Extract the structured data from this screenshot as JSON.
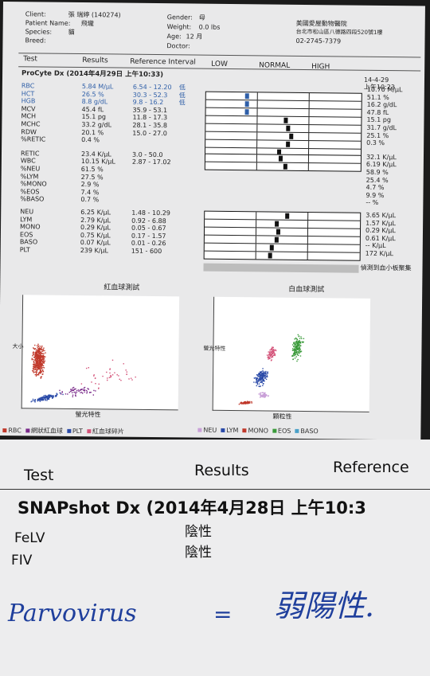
{
  "header": {
    "client_label": "Client:",
    "client_value": "張 瑞婷 (140274)",
    "patient_label": "Patient Name:",
    "patient_value": "飛瓏",
    "species_label": "Species:",
    "species_value": "貓",
    "breed_label": "Breed:",
    "gender_label": "Gender:",
    "gender_value": "母",
    "weight_label": "Weight:",
    "weight_value": "0.0 lbs",
    "age_label": "Age:",
    "age_value": "12 月",
    "doctor_label": "Doctor:",
    "clinic_name": "美國愛屋動物醫院",
    "clinic_address": "台北市松山區八德路四段520號1樓",
    "clinic_phone": "02-2745-7379"
  },
  "columns": {
    "test": "Test",
    "results": "Results",
    "reference": "Reference Interval",
    "low": "LOW",
    "normal": "NORMAL",
    "high": "HIGH"
  },
  "procyte": {
    "title": "ProCyte Dx (2014年4月29日 上午10:33)",
    "prev_date": "14-4-29",
    "prev_time": "上午10:23",
    "rows": [
      {
        "name": "RBC",
        "result": "5.84 M/μL",
        "ref": "6.54 - 12.20",
        "flag": "低",
        "prev": "10.70 M/μL",
        "low": true,
        "pos": 0.25
      },
      {
        "name": "HCT",
        "result": "26.5 %",
        "ref": "30.3 - 52.3",
        "flag": "低",
        "prev": "51.1 %",
        "low": true,
        "pos": 0.25
      },
      {
        "name": "HGB",
        "result": "8.8 g/dL",
        "ref": "9.8 - 16.2",
        "flag": "低",
        "prev": "16.2 g/dL",
        "low": true,
        "pos": 0.25
      },
      {
        "name": "MCV",
        "result": "45.4 fL",
        "ref": "35.9 - 53.1",
        "flag": "",
        "prev": "47.8 fL",
        "low": false,
        "pos": 0.5
      },
      {
        "name": "MCH",
        "result": "15.1 pg",
        "ref": "11.8 - 17.3",
        "flag": "",
        "prev": "15.1 pg",
        "low": false,
        "pos": 0.52
      },
      {
        "name": "MCHC",
        "result": "33.2 g/dL",
        "ref": "28.1 - 35.8",
        "flag": "",
        "prev": "31.7 g/dL",
        "low": false,
        "pos": 0.54
      },
      {
        "name": "RDW",
        "result": "20.1 %",
        "ref": "15.0 - 27.0",
        "flag": "",
        "prev": "25.1 %",
        "low": false,
        "pos": 0.52
      },
      {
        "name": "%RETIC",
        "result": "0.4 %",
        "ref": "",
        "flag": "",
        "prev": "0.3 %",
        "low": false,
        "pos": 0.46
      },
      {
        "name": "RETIC",
        "result": "23.4 K/μL",
        "ref": "3.0 - 50.0",
        "flag": "",
        "prev": "32.1 K/μL",
        "low": false,
        "pos": 0.47
      },
      {
        "name": "WBC",
        "result": "10.15 K/μL",
        "ref": "2.87 - 17.02",
        "flag": "",
        "prev": "6.19 K/μL",
        "low": false,
        "pos": 0.5
      },
      {
        "name": "%NEU",
        "result": "61.5 %",
        "ref": "",
        "flag": "",
        "prev": "58.9 %",
        "low": false,
        "pos": -1
      },
      {
        "name": "%LYM",
        "result": "27.5 %",
        "ref": "",
        "flag": "",
        "prev": "25.4 %",
        "low": false,
        "pos": -1
      },
      {
        "name": "%MONO",
        "result": "2.9 %",
        "ref": "",
        "flag": "",
        "prev": "4.7 %",
        "low": false,
        "pos": -1
      },
      {
        "name": "%EOS",
        "result": "7.4 %",
        "ref": "",
        "flag": "",
        "prev": "9.9 %",
        "low": false,
        "pos": -1
      },
      {
        "name": "%BASO",
        "result": "0.7 %",
        "ref": "",
        "flag": "",
        "prev": "-- %",
        "low": false,
        "pos": -1
      },
      {
        "name": "NEU",
        "result": "6.25 K/μL",
        "ref": "1.48 - 10.29",
        "flag": "",
        "prev": "3.65 K/μL",
        "low": false,
        "pos": 0.52
      },
      {
        "name": "LYM",
        "result": "2.79 K/μL",
        "ref": "0.92 - 6.88",
        "flag": "",
        "prev": "1.57 K/μL",
        "low": false,
        "pos": 0.45
      },
      {
        "name": "MONO",
        "result": "0.29 K/μL",
        "ref": "0.05 - 0.67",
        "flag": "",
        "prev": "0.29 K/μL",
        "low": false,
        "pos": 0.46
      },
      {
        "name": "EOS",
        "result": "0.75 K/μL",
        "ref": "0.17 - 1.57",
        "flag": "",
        "prev": "0.61 K/μL",
        "low": false,
        "pos": 0.45
      },
      {
        "name": "BASO",
        "result": "0.07 K/μL",
        "ref": "0.01 - 0.26",
        "flag": "",
        "prev": "-- K/μL",
        "low": false,
        "pos": 0.42
      },
      {
        "name": "PLT",
        "result": "239 K/μL",
        "ref": "151 - 600",
        "flag": "",
        "prev": "172 K/μL",
        "low": false,
        "pos": 0.41
      }
    ],
    "plt_note": "偵測到血小板聚集"
  },
  "plots": {
    "rbc_title": "紅血球測試",
    "rbc_ylabel": "大小",
    "rbc_xlabel": "螢光特性",
    "wbc_title": "白血球測試",
    "wbc_ylabel": "螢光特性",
    "wbc_xlabel": "顆粒性",
    "rbc_legend": [
      {
        "label": "RBC",
        "color": "#c0392b"
      },
      {
        "label": "網狀紅血球",
        "color": "#7a2a8a"
      },
      {
        "label": "PLT",
        "color": "#2a4aa8"
      },
      {
        "label": "紅血球碎片",
        "color": "#d4547a"
      }
    ],
    "wbc_legend": [
      {
        "label": "NEU",
        "color": "#c9a0d8"
      },
      {
        "label": "LYM",
        "color": "#2a4aa8"
      },
      {
        "label": "MONO",
        "color": "#c0392b"
      },
      {
        "label": "EOS",
        "color": "#3a9a3a"
      },
      {
        "label": "BASO",
        "color": "#4aa0c8"
      }
    ]
  },
  "snap": {
    "test": "Test",
    "results": "Results",
    "reference": "Reference",
    "title": "SNAPshot Dx (2014年4月28日  上午10:3",
    "rows": [
      {
        "name": "FeLV",
        "result": "陰性"
      },
      {
        "name": "FIV",
        "result": "陰性"
      }
    ],
    "handwritten_name": "Parvovirus",
    "handwritten_sep": "=",
    "handwritten_result": "弱陽性."
  }
}
